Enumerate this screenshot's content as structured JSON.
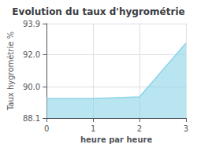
{
  "chart_data": {
    "type": "area",
    "title": "Evolution du taux d'hygrométrie",
    "xlabel": "heure par heure",
    "ylabel": "Taux hygrométrie %",
    "x": [
      0,
      1,
      2,
      3
    ],
    "values": [
      89.3,
      89.3,
      89.4,
      92.7
    ],
    "xlim": [
      0,
      3
    ],
    "ylim": [
      88.1,
      93.9
    ],
    "xticks": [
      0,
      1,
      2,
      3
    ],
    "yticks": [
      88.1,
      {
        "value": 90.0,
        "label": "90.0"
      },
      {
        "value": 92.0,
        "label": "92.0"
      },
      93.9
    ],
    "color": "#8ad4e8",
    "grid": true
  }
}
